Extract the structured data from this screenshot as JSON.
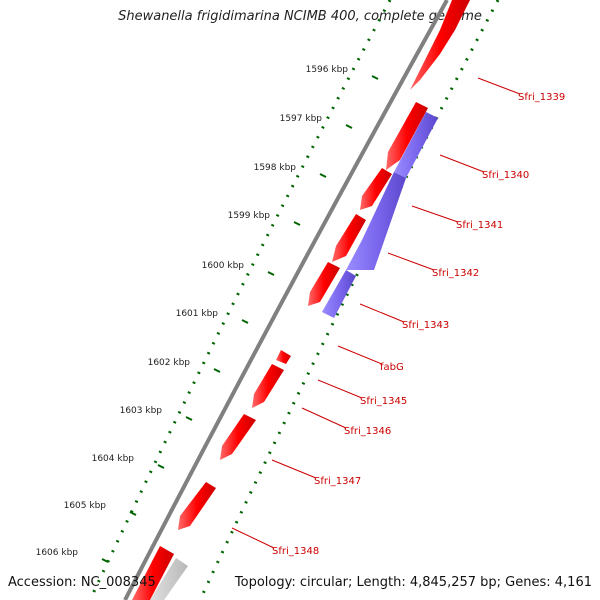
{
  "title": "Shewanella frigidimarina NCIMB 400, complete genome",
  "footer": {
    "accession": "Accession: NC_008345",
    "topology": "Topology: circular; Length: 4,845,257 bp; Genes: 4,161"
  },
  "colors": {
    "forward_gene": "#ff0000",
    "reverse_gene": "#7b68ee",
    "backbone": "#808080",
    "gc_skew": "#006400",
    "label": "#cc0000"
  },
  "ticks": [
    {
      "label": "1596 kbp"
    },
    {
      "label": "1597 kbp"
    },
    {
      "label": "1598 kbp"
    },
    {
      "label": "1599 kbp"
    },
    {
      "label": "1600 kbp"
    },
    {
      "label": "1601 kbp"
    },
    {
      "label": "1602 kbp"
    },
    {
      "label": "1603 kbp"
    },
    {
      "label": "1604 kbp"
    },
    {
      "label": "1605 kbp"
    },
    {
      "label": "1606 kbp"
    }
  ],
  "gene_labels": [
    {
      "label": "Sfri_1339"
    },
    {
      "label": "Sfri_1340"
    },
    {
      "label": "Sfri_1341"
    },
    {
      "label": "Sfri_1342"
    },
    {
      "label": "Sfri_1343"
    },
    {
      "label": "fabG"
    },
    {
      "label": "Sfri_1345"
    },
    {
      "label": "Sfri_1346"
    },
    {
      "label": "Sfri_1347"
    },
    {
      "label": "Sfri_1348"
    }
  ]
}
